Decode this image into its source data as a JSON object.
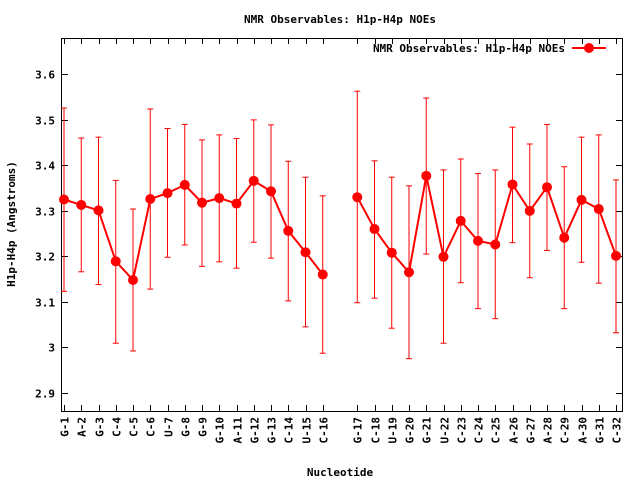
{
  "chart_data": {
    "type": "line",
    "title": "NMR Observables: H1p-H4p NOEs",
    "xlabel": "Nucleotide",
    "ylabel": "H1p-H4p (Angstroms)",
    "ylim": [
      2.86,
      3.68
    ],
    "yticks": [
      2.9,
      3,
      3.1,
      3.2,
      3.3,
      3.4,
      3.5,
      3.6
    ],
    "ytick_labels": [
      "2.9",
      "3",
      "3.1",
      "3.2",
      "3.3",
      "3.4",
      "3.5",
      "3.6"
    ],
    "grid": false,
    "legend_position": "top-right",
    "categories": [
      "G-1",
      "A-2",
      "G-3",
      "C-4",
      "C-5",
      "C-6",
      "U-7",
      "G-8",
      "G-9",
      "G-10",
      "A-11",
      "G-12",
      "G-13",
      "C-14",
      "U-15",
      "C-16",
      "",
      "G-17",
      "C-18",
      "U-19",
      "G-20",
      "G-21",
      "U-22",
      "C-23",
      "C-24",
      "C-25",
      "A-26",
      "G-27",
      "A-28",
      "C-29",
      "A-30",
      "G-31",
      "C-32"
    ],
    "series": [
      {
        "name": "NMR Observables: H1p-H4p NOEs",
        "color": "#ff0000",
        "values": [
          3.325,
          3.313,
          3.301,
          3.189,
          3.148,
          3.326,
          3.339,
          3.357,
          3.318,
          3.328,
          3.316,
          3.366,
          3.343,
          3.256,
          3.209,
          3.16,
          null,
          3.33,
          3.26,
          3.208,
          3.165,
          3.377,
          3.199,
          3.278,
          3.234,
          3.226,
          3.358,
          3.3,
          3.352,
          3.241,
          3.324,
          3.304,
          3.201
        ],
        "err_low": [
          3.123,
          3.166,
          3.138,
          3.009,
          2.992,
          3.128,
          3.198,
          3.225,
          3.178,
          3.188,
          3.174,
          3.231,
          3.196,
          3.102,
          3.045,
          2.987,
          null,
          3.098,
          3.108,
          3.042,
          2.975,
          3.205,
          3.009,
          3.142,
          3.085,
          3.063,
          3.23,
          3.153,
          3.213,
          3.085,
          3.187,
          3.141,
          3.032
        ],
        "err_high": [
          3.526,
          3.46,
          3.462,
          3.367,
          3.304,
          3.524,
          3.481,
          3.49,
          3.456,
          3.467,
          3.459,
          3.5,
          3.489,
          3.409,
          3.374,
          3.333,
          null,
          3.563,
          3.41,
          3.374,
          3.355,
          3.548,
          3.39,
          3.414,
          3.382,
          3.39,
          3.484,
          3.447,
          3.49,
          3.397,
          3.462,
          3.467,
          3.368
        ]
      }
    ]
  }
}
